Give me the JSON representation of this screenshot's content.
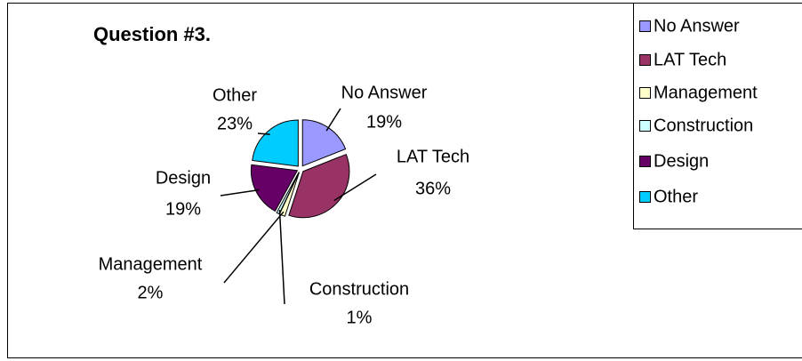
{
  "chart_data": {
    "type": "pie",
    "title": "Question #3.",
    "categories": [
      "No Answer",
      "LAT Tech",
      "Management",
      "Construction",
      "Design",
      "Other"
    ],
    "values": [
      19,
      36,
      2,
      1,
      19,
      23
    ],
    "value_labels": [
      "19%",
      "36%",
      "2%",
      "1%",
      "19%",
      "23%"
    ],
    "colors": [
      "#9999ff",
      "#993366",
      "#ffffcc",
      "#ccffff",
      "#660066",
      "#00ccff"
    ],
    "legend": "right"
  }
}
